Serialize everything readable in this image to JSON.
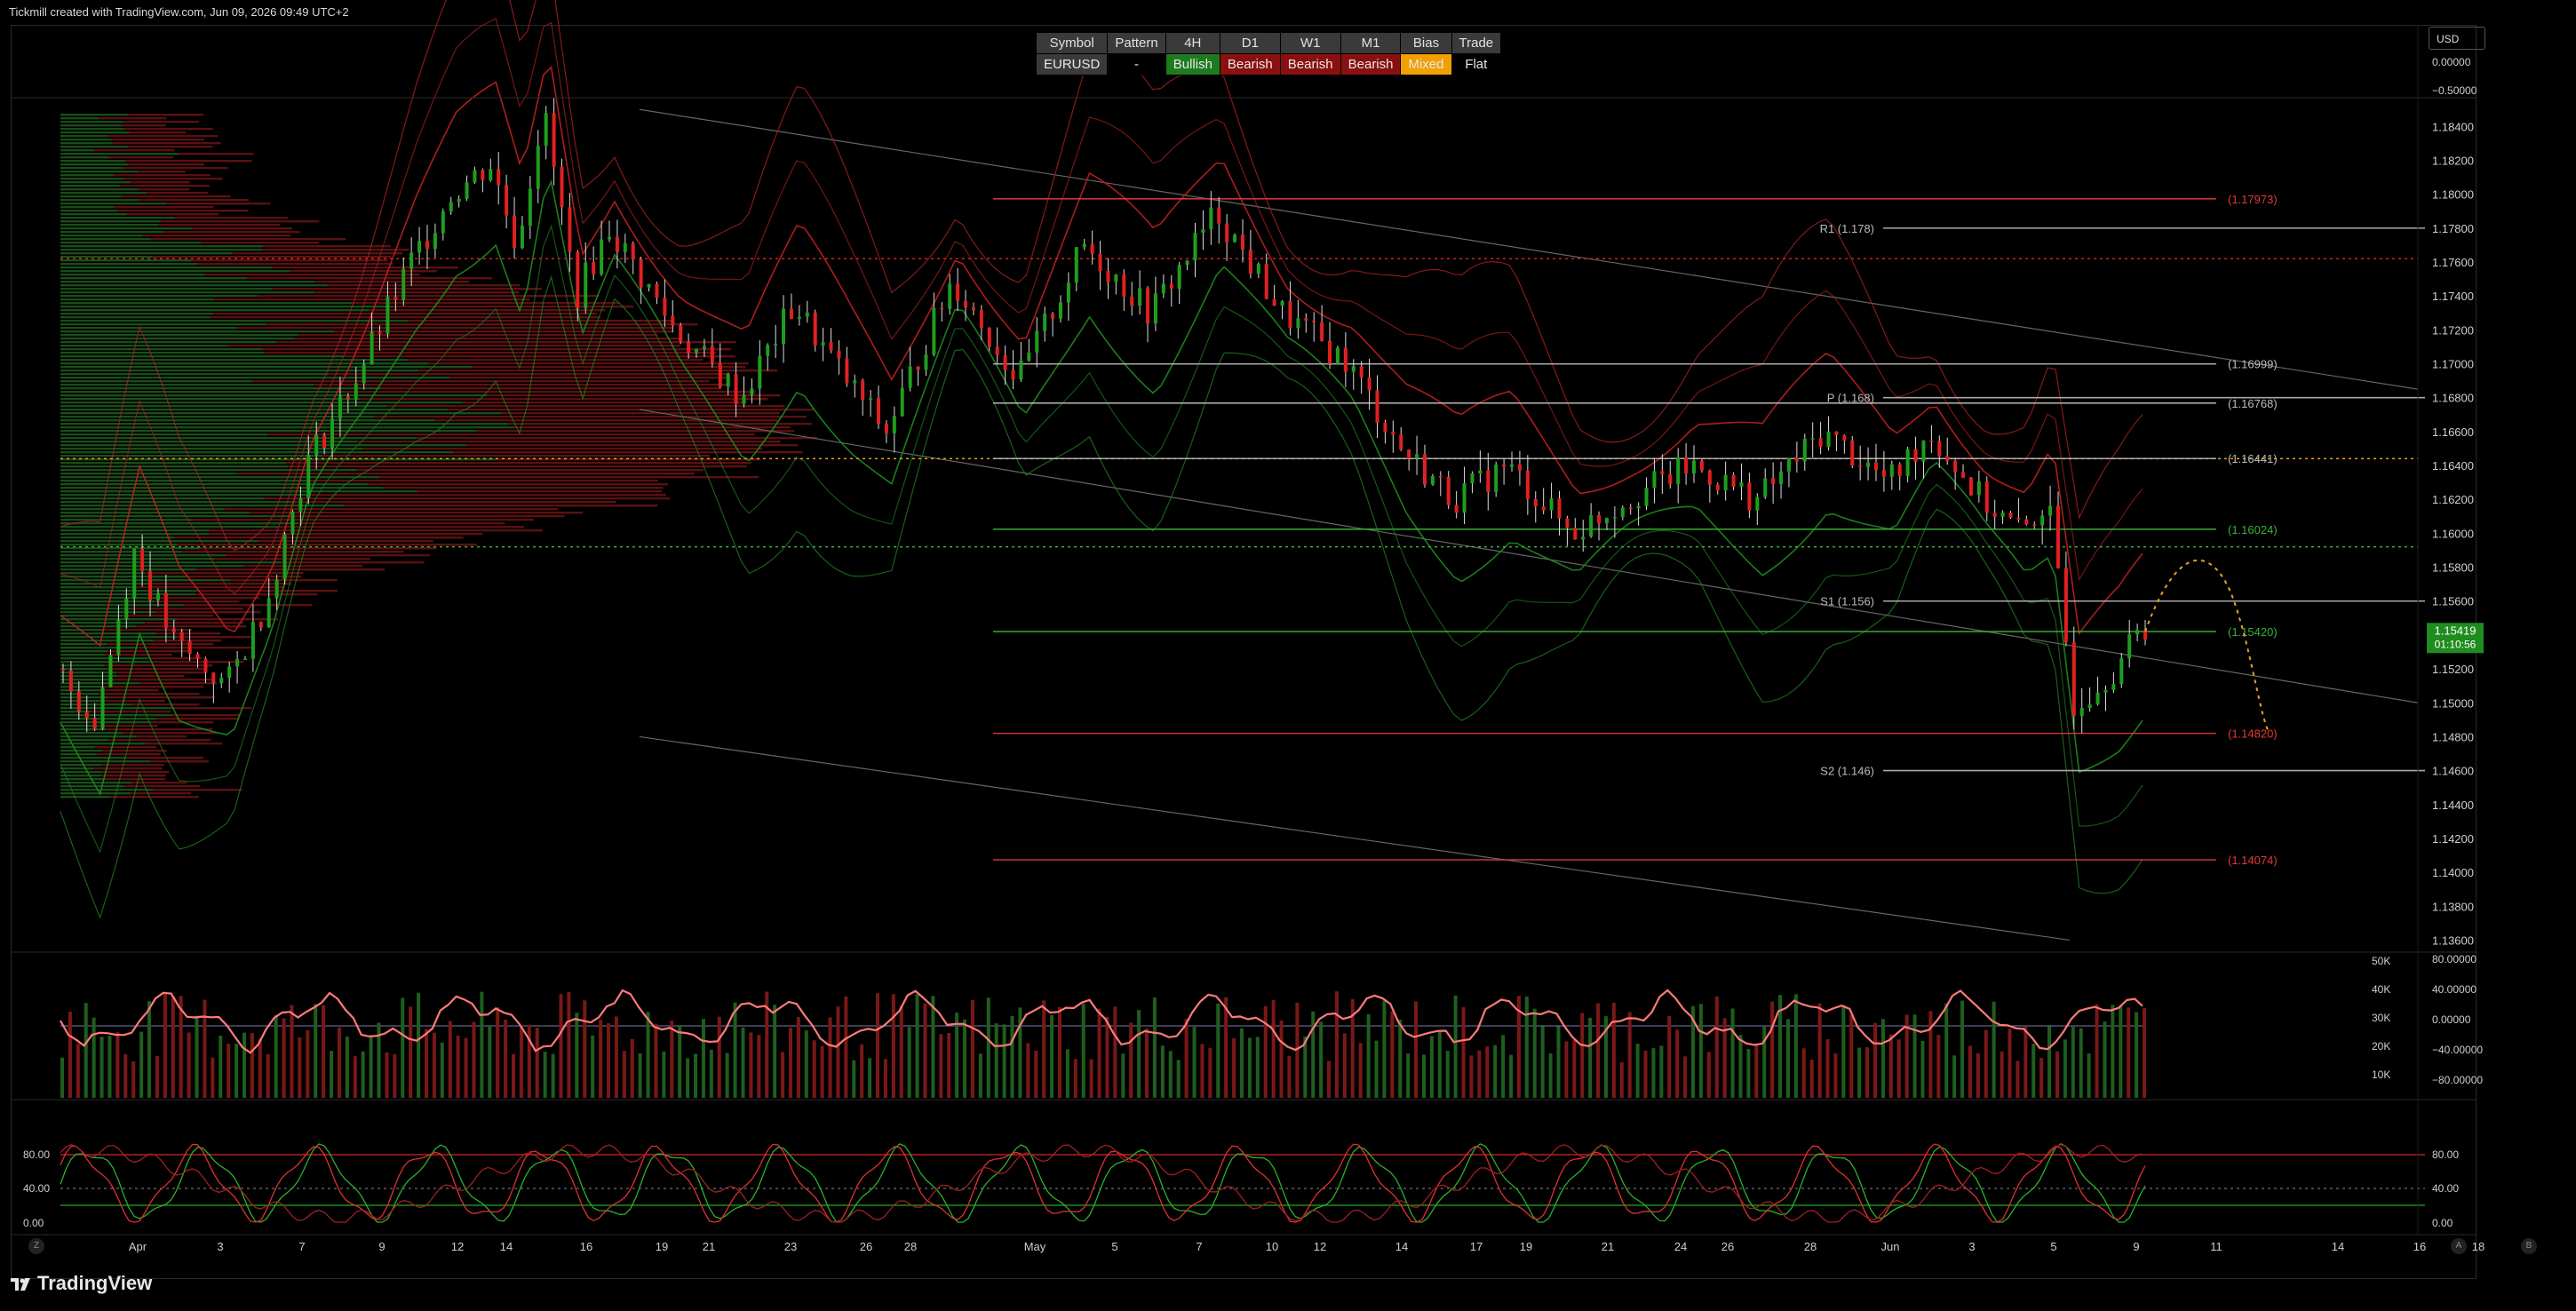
{
  "header": {
    "credit": "Tickmill created with TradingView.com, Jun 09, 2026 09:49 UTC+2"
  },
  "currency_selector": {
    "label": "USD"
  },
  "bias_table": {
    "headers": [
      "Symbol",
      "Pattern",
      "4H",
      "D1",
      "W1",
      "M1",
      "Bias",
      "Trade"
    ],
    "values": [
      "EURUSD",
      "-",
      "Bullish",
      "Bearish",
      "Bearish",
      "Bearish",
      "Mixed",
      "Flat"
    ],
    "colors": [
      "#3a3a3a",
      "#000000",
      "#1e7a1e",
      "#8a1010",
      "#8a1010",
      "#8a1010",
      "#f0a000",
      "#000000"
    ]
  },
  "footer": {
    "logo_text": "TradingView",
    "left_button": "Z",
    "right_buttons": [
      "A",
      "B"
    ]
  },
  "chart_data": [
    {
      "type": "candlestick",
      "symbol": "EURUSD",
      "timeframe": "4H",
      "y_ticks": [
        "1.18400",
        "1.18200",
        "1.18000",
        "1.17800",
        "1.17600",
        "1.17400",
        "1.17200",
        "1.17000",
        "1.16800",
        "1.16600",
        "1.16400",
        "1.16200",
        "1.16000",
        "1.15800",
        "1.15600",
        "1.15200",
        "1.15000",
        "1.14800",
        "1.14600",
        "1.14400",
        "1.14200",
        "1.14000",
        "1.13800",
        "1.13600"
      ],
      "ylim": [
        1.1355,
        1.1858
      ],
      "top_scale_ticks": [
        "0.00000",
        "−0.50000"
      ],
      "x_ticks": [
        "Apr",
        "3",
        "7",
        "9",
        "12",
        "14",
        "16",
        "19",
        "21",
        "23",
        "26",
        "28",
        "May",
        "5",
        "7",
        "10",
        "12",
        "14",
        "17",
        "19",
        "21",
        "24",
        "26",
        "28",
        "Jun",
        "3",
        "5",
        "9",
        "11",
        "14",
        "16",
        "18"
      ],
      "last_price": {
        "value": "1.15419",
        "countdown": "01:10:56",
        "color": "#1e8c1e"
      },
      "levels": [
        {
          "label": "(1.17973)",
          "value": 1.17973,
          "color": "#e03a3a"
        },
        {
          "label": "R1 (1.178)",
          "value": 1.178,
          "color": "#bbbbbb"
        },
        {
          "label": "(1.16999)",
          "value": 1.16999,
          "color": "#bbbbbb"
        },
        {
          "label": "P (1.168)",
          "value": 1.168,
          "color": "#bbbbbb"
        },
        {
          "label": "(1.16768)",
          "value": 1.16768,
          "color": "#bbbbbb"
        },
        {
          "label": "(1.16441)",
          "value": 1.16441,
          "color": "#bbbbbb"
        },
        {
          "label": "(1.16024)",
          "value": 1.16024,
          "color": "#3ab03a"
        },
        {
          "label": "S1 (1.156)",
          "value": 1.156,
          "color": "#bbbbbb"
        },
        {
          "label": "(1.15420)",
          "value": 1.1542,
          "color": "#3ab03a"
        },
        {
          "label": "(1.14820)",
          "value": 1.1482,
          "color": "#e03a3a"
        },
        {
          "label": "S2 (1.146)",
          "value": 1.146,
          "color": "#bbbbbb"
        },
        {
          "label": "(1.14074)",
          "value": 1.14074,
          "color": "#e03a3a"
        }
      ],
      "dotted_levels": [
        {
          "value": 1.1762,
          "color": "#d02020"
        },
        {
          "value": 1.1644,
          "color": "#e8a020"
        },
        {
          "value": 1.1592,
          "color": "#3ab03a"
        }
      ],
      "bull_color": "#1e9e1e",
      "bear_color": "#e02020"
    },
    {
      "type": "bar",
      "name": "volume",
      "y_ticks_left": [
        "50K",
        "40K",
        "30K",
        "20K",
        "10K"
      ],
      "y_ticks_right": [
        "80.00000",
        "40.00000",
        "0.00000",
        "−40.00000",
        "−80.00000"
      ]
    },
    {
      "type": "line",
      "name": "stochastic",
      "y_ticks_left": [
        "80.00",
        "40.00",
        "0.00"
      ],
      "y_ticks_right": [
        "80.00",
        "40.00",
        "0.00"
      ],
      "bands": [
        80,
        40,
        20
      ]
    }
  ]
}
